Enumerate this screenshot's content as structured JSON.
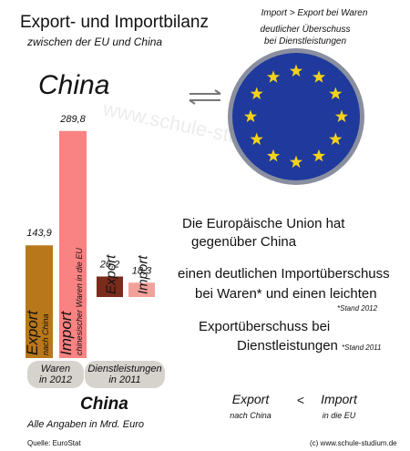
{
  "header": {
    "title": "Export- und Importbilanz",
    "subtitle": "zwischen der EU und China"
  },
  "note": [
    "Import > Export  bei Waren",
    "deutlicher Überschuss",
    "bei Dienstleistungen"
  ],
  "country": "China",
  "watermark": "www.schule-studium.de",
  "chart_data": {
    "type": "bar",
    "groups": [
      {
        "label": [
          "Waren",
          "in 2012"
        ],
        "categories": [
          "Export",
          "Import"
        ],
        "sublabels": [
          "nach China",
          "chinesischer Waren   in die EU"
        ],
        "values": [
          143.9,
          289.8
        ],
        "value_labels": [
          "143,9",
          "289,8"
        ],
        "colors": [
          "#b8771a",
          "#f98282"
        ]
      },
      {
        "label": [
          "Dienstleistungen",
          "in 2011"
        ],
        "categories": [
          "Export",
          "Import"
        ],
        "values": [
          26.2,
          18.3
        ],
        "value_labels": [
          "26,2",
          "18,3"
        ],
        "colors": [
          "#7a2b1c",
          "#f2a09a"
        ]
      }
    ],
    "caption": "China",
    "unit_note": "Alle Angaben in Mrd. Euro"
  },
  "summary": {
    "intro": [
      "Die Europäische Union hat",
      "gegenüber China"
    ],
    "line1": "einen deutlichen Importüberschuss",
    "line2": "bei Waren* und einen leichten",
    "stand1": "*Stand 2012",
    "line3": "Exportüberschuss bei",
    "line4": "Dienstleistungen",
    "stand2": "*Stand 2011"
  },
  "comparison": {
    "left": "Export",
    "left_note": "nach China",
    "sign": "<",
    "right": "Import",
    "right_note": "in die EU"
  },
  "footer": {
    "source": "Quelle: EuroStat",
    "copyright": "(c) www.schule-studium.de"
  }
}
